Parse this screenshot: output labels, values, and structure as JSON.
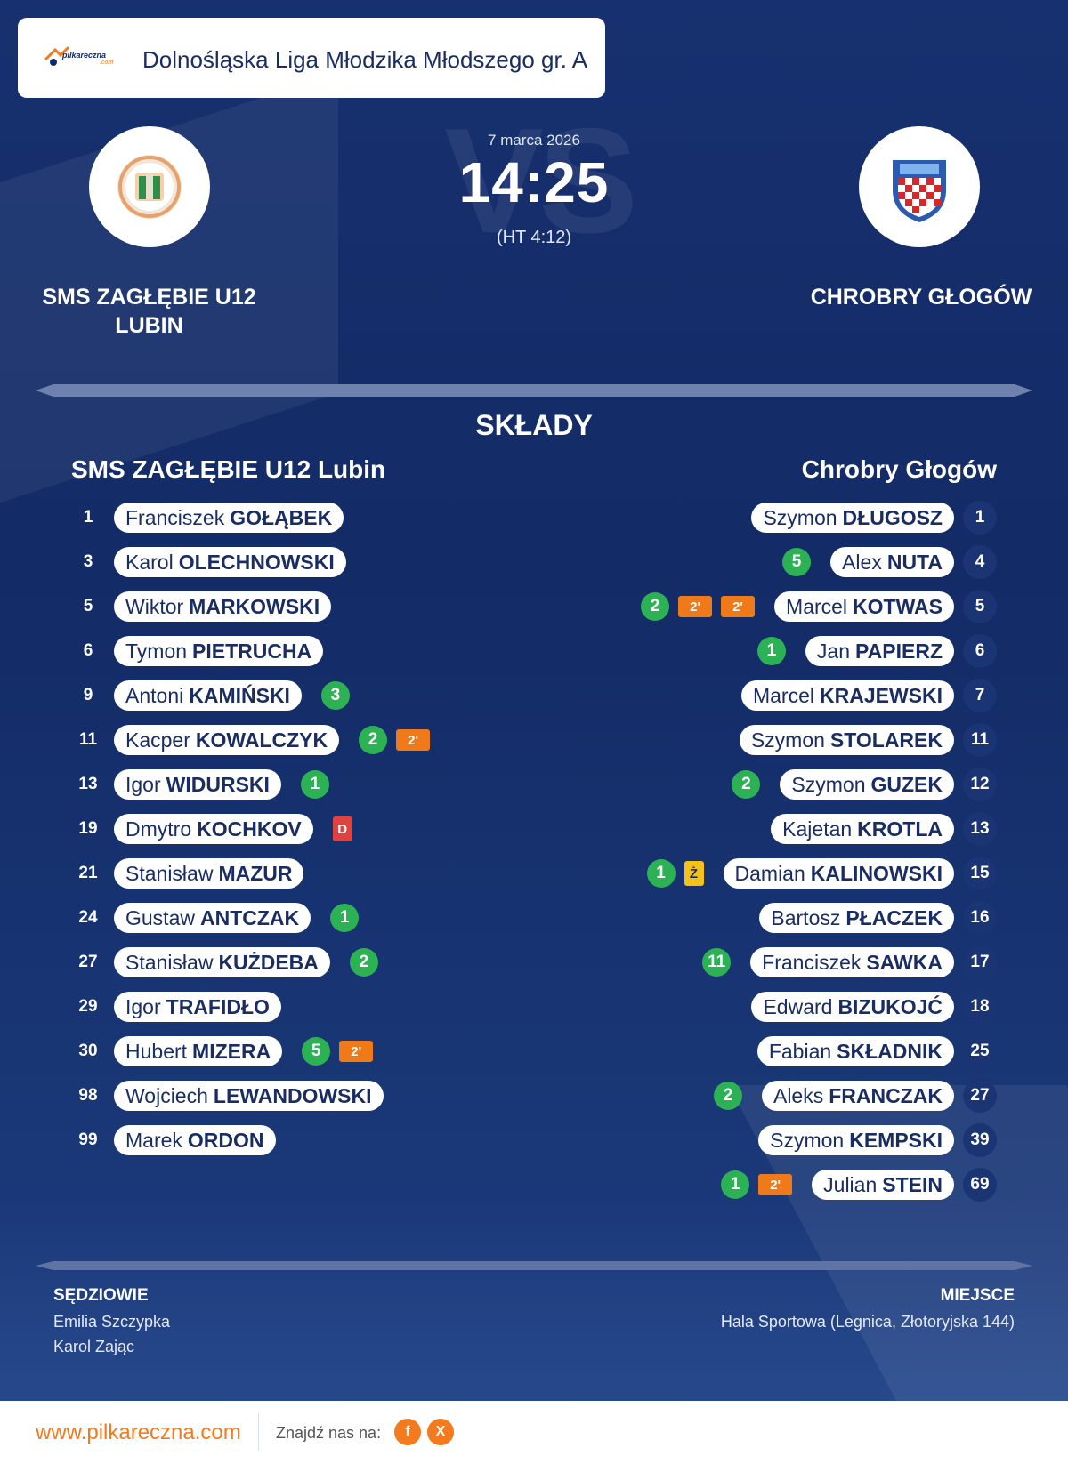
{
  "header": {
    "logo_text": "pilkareczna",
    "logo_sub": ".com",
    "league": "Dolnośląska Liga Młodzika Młodszego gr. A"
  },
  "match": {
    "date": "7 marca 2026",
    "score": "14:25",
    "halftime": "(HT 4:12)",
    "vs_watermark": "VS"
  },
  "home": {
    "name": "SMS ZAGŁĘBIE U12 LUBIN",
    "squad_title": "SMS ZAGŁĘBIE U12 Lubin",
    "players": [
      {
        "num": "1",
        "first": "Franciszek",
        "last": "GOŁĄBEK",
        "badges": []
      },
      {
        "num": "3",
        "first": "Karol",
        "last": "OLECHNOWSKI",
        "badges": []
      },
      {
        "num": "5",
        "first": "Wiktor",
        "last": "MARKOWSKI",
        "badges": []
      },
      {
        "num": "6",
        "first": "Tymon",
        "last": "PIETRUCHA",
        "badges": []
      },
      {
        "num": "9",
        "first": "Antoni",
        "last": "KAMIŃSKI",
        "badges": [
          {
            "type": "goal",
            "text": "3"
          }
        ]
      },
      {
        "num": "11",
        "first": "Kacper",
        "last": "KOWALCZYK",
        "badges": [
          {
            "type": "goal",
            "text": "2"
          },
          {
            "type": "susp",
            "text": "2'"
          }
        ]
      },
      {
        "num": "13",
        "first": "Igor",
        "last": "WIDURSKI",
        "badges": [
          {
            "type": "goal",
            "text": "1"
          }
        ]
      },
      {
        "num": "19",
        "first": "Dmytro",
        "last": "KOCHKOV",
        "badges": [
          {
            "type": "red",
            "text": "D"
          }
        ]
      },
      {
        "num": "21",
        "first": "Stanisław",
        "last": "MAZUR",
        "badges": []
      },
      {
        "num": "24",
        "first": "Gustaw",
        "last": "ANTCZAK",
        "badges": [
          {
            "type": "goal",
            "text": "1"
          }
        ]
      },
      {
        "num": "27",
        "first": "Stanisław",
        "last": "KUŻDEBA",
        "badges": [
          {
            "type": "goal",
            "text": "2"
          }
        ]
      },
      {
        "num": "29",
        "first": "Igor",
        "last": "TRAFIDŁO",
        "badges": []
      },
      {
        "num": "30",
        "first": "Hubert",
        "last": "MIZERA",
        "badges": [
          {
            "type": "goal",
            "text": "5"
          },
          {
            "type": "susp",
            "text": "2'"
          }
        ]
      },
      {
        "num": "98",
        "first": "Wojciech",
        "last": "LEWANDOWSKI",
        "badges": []
      },
      {
        "num": "99",
        "first": "Marek",
        "last": "ORDON",
        "badges": []
      }
    ]
  },
  "away": {
    "name": "CHROBRY GŁOGÓW",
    "squad_title": "Chrobry Głogów",
    "players": [
      {
        "num": "1",
        "first": "Szymon",
        "last": "DŁUGOSZ",
        "badges": []
      },
      {
        "num": "4",
        "first": "Alex",
        "last": "NUTA",
        "badges": [
          {
            "type": "goal",
            "text": "5"
          }
        ]
      },
      {
        "num": "5",
        "first": "Marcel",
        "last": "KOTWAS",
        "badges": [
          {
            "type": "susp",
            "text": "2'"
          },
          {
            "type": "susp",
            "text": "2'"
          },
          {
            "type": "goal",
            "text": "2"
          }
        ]
      },
      {
        "num": "6",
        "first": "Jan",
        "last": "PAPIERZ",
        "badges": [
          {
            "type": "goal",
            "text": "1"
          }
        ]
      },
      {
        "num": "7",
        "first": "Marcel",
        "last": "KRAJEWSKI",
        "badges": []
      },
      {
        "num": "11",
        "first": "Szymon",
        "last": "STOLAREK",
        "badges": []
      },
      {
        "num": "12",
        "first": "Szymon",
        "last": "GUZEK",
        "badges": [
          {
            "type": "goal",
            "text": "2"
          }
        ]
      },
      {
        "num": "13",
        "first": "Kajetan",
        "last": "KROTLA",
        "badges": []
      },
      {
        "num": "15",
        "first": "Damian",
        "last": "KALINOWSKI",
        "badges": [
          {
            "type": "yellow",
            "text": "Ż"
          },
          {
            "type": "goal",
            "text": "1"
          }
        ]
      },
      {
        "num": "16",
        "first": "Bartosz",
        "last": "PŁACZEK",
        "badges": []
      },
      {
        "num": "17",
        "first": "Franciszek",
        "last": "SAWKA",
        "badges": [
          {
            "type": "goal",
            "text": "11"
          }
        ]
      },
      {
        "num": "18",
        "first": "Edward",
        "last": "BIZUKOJĆ",
        "badges": []
      },
      {
        "num": "25",
        "first": "Fabian",
        "last": "SKŁADNIK",
        "badges": []
      },
      {
        "num": "27",
        "first": "Aleks",
        "last": "FRANCZAK",
        "badges": [
          {
            "type": "goal",
            "text": "2"
          }
        ]
      },
      {
        "num": "39",
        "first": "Szymon",
        "last": "KEMPSKI",
        "badges": []
      },
      {
        "num": "69",
        "first": "Julian",
        "last": "STEIN",
        "badges": [
          {
            "type": "susp",
            "text": "2'"
          },
          {
            "type": "goal",
            "text": "1"
          }
        ]
      }
    ]
  },
  "lineups_title": "SKŁADY",
  "officials": {
    "label": "SĘDZIOWIE",
    "names": [
      "Emilia Szczypka",
      "Karol Zając"
    ]
  },
  "venue": {
    "label": "MIEJSCE",
    "text": "Hala Sportowa (Legnica, Złotoryjska 144)"
  },
  "footer": {
    "site": "www.pilkareczna.com",
    "find_us": "Znajdź nas na:",
    "socials": [
      {
        "name": "facebook-icon",
        "glyph": "f"
      },
      {
        "name": "x-icon",
        "glyph": "X"
      }
    ]
  },
  "colors": {
    "background": "#142a66",
    "accent": "#f47a20",
    "goal": "#2db155",
    "suspension": "#f07a1a",
    "red_card": "#e0423f",
    "yellow_card": "#f5c21b"
  }
}
